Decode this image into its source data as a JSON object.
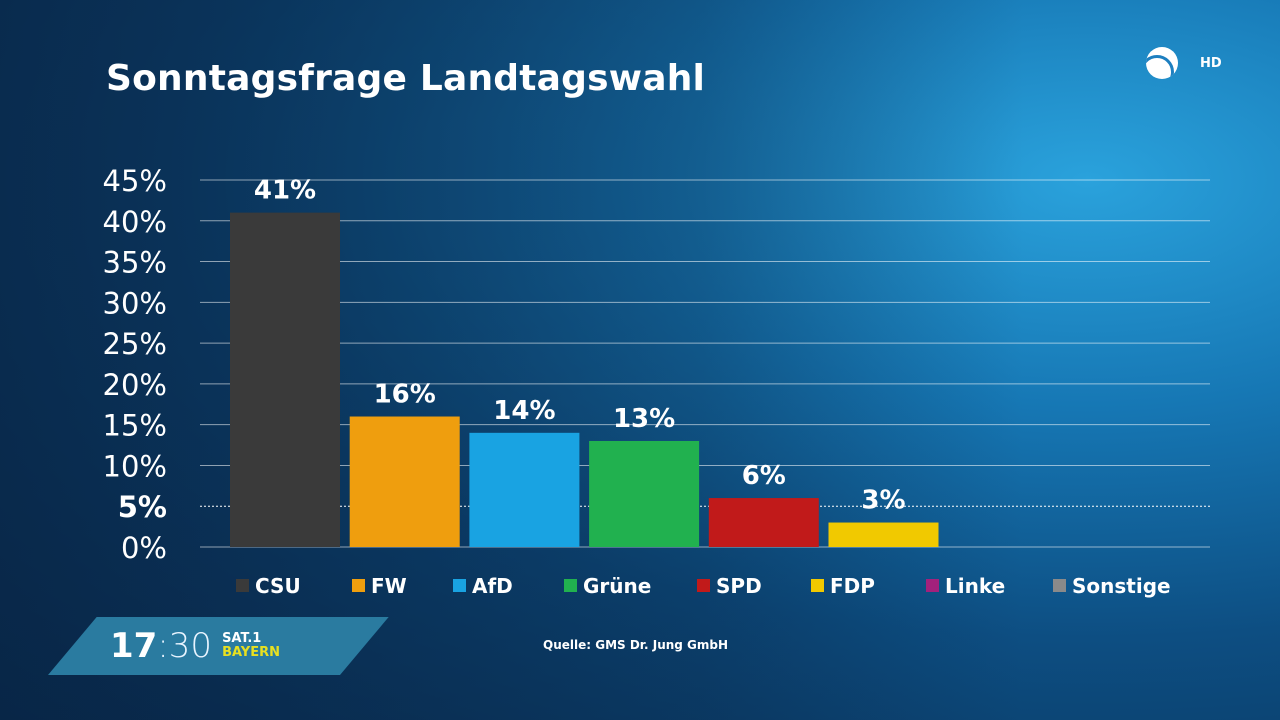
{
  "header": {
    "title": "Sonntagsfrage Landtagswahl",
    "channel_badge": "HD",
    "logo_icon": "sat1-ball-logo"
  },
  "footer": {
    "time_hours": "17",
    "time_minutes": "30",
    "channel_line1": "SAT.1",
    "channel_line2": "BAYERN",
    "source": "Quelle: GMS Dr. Jung GmbH"
  },
  "chart_data": {
    "type": "bar",
    "title": "Sonntagsfrage Landtagswahl",
    "categories": [
      "CSU",
      "FW",
      "AfD",
      "Grüne",
      "SPD",
      "FDP",
      "Linke",
      "Sonstige"
    ],
    "values": [
      41,
      16,
      14,
      13,
      6,
      3,
      null,
      null
    ],
    "data_labels": [
      "41%",
      "16%",
      "14%",
      "13%",
      "6%",
      "3%",
      "",
      ""
    ],
    "colors": [
      "#3a3a3a",
      "#ef9e0e",
      "#19a3e2",
      "#21b14f",
      "#c11a1a",
      "#f1c900",
      "#a3217c",
      "#8a8a8a"
    ],
    "ylim": [
      0,
      45
    ],
    "yticks": [
      "0%",
      "5%",
      "10%",
      "15%",
      "20%",
      "25%",
      "30%",
      "35%",
      "40%",
      "45%"
    ],
    "threshold": 5,
    "grid": true,
    "legend": "bottom"
  }
}
